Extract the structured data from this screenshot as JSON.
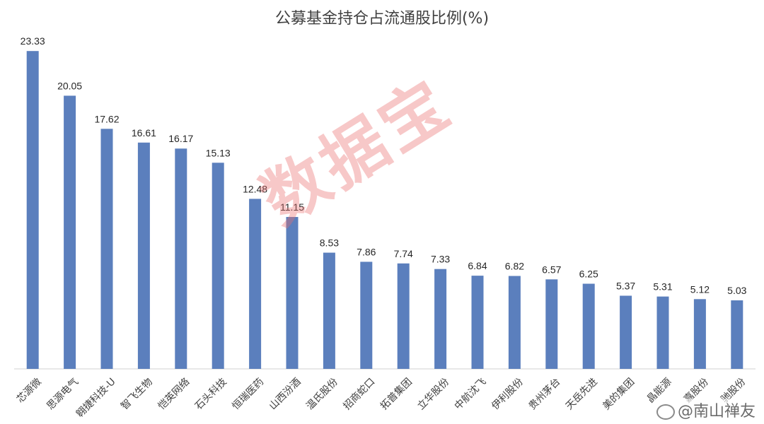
{
  "chart_data": {
    "type": "bar",
    "title": "公募基金持仓占流通股比例(%)",
    "categories": [
      "芯源微",
      "思源电气",
      "翱捷科技-U",
      "智飞生物",
      "恺英网络",
      "石头科技",
      "恒瑞医药",
      "山西汾酒",
      "温氏股份",
      "招商蛇口",
      "拓普集团",
      "立华股份",
      "中航沈飞",
      "伊利股份",
      "贵州茅台",
      "天岳先进",
      "美的集团",
      "晶能源",
      "嘉股份",
      "驰股份"
    ],
    "values": [
      23.33,
      20.05,
      17.62,
      16.61,
      16.17,
      15.13,
      12.48,
      11.15,
      8.53,
      7.86,
      7.74,
      7.33,
      6.84,
      6.82,
      6.57,
      6.25,
      5.37,
      5.31,
      5.12,
      5.03
    ],
    "value_labels": [
      "23.33",
      "20.05",
      "17.62",
      "16.61",
      "16.17",
      "15.13",
      "12.48",
      "11.15",
      "8.53",
      "7.86",
      "7.74",
      "7.33",
      "6.84",
      "6.82",
      "6.57",
      "6.25",
      "5.37",
      "5.31",
      "5.12",
      "5.03"
    ],
    "ylim": [
      0,
      25
    ],
    "bar_color": "#5b7fbd",
    "grid": false,
    "legend": "none"
  },
  "watermark": {
    "text": "数据宝",
    "color": "#eb6e6e"
  },
  "credit": {
    "text": "@南山禅友"
  }
}
